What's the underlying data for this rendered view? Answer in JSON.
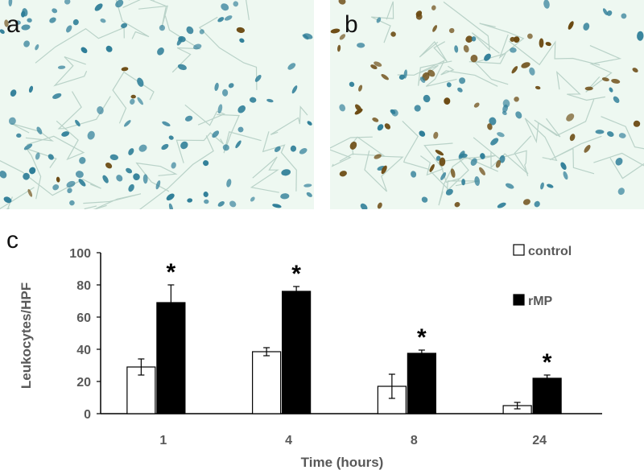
{
  "panels": [
    {
      "letter": "a"
    },
    {
      "letter": "b"
    },
    {
      "letter": "c"
    }
  ],
  "colors": {
    "tissue_background": "#eef8f1",
    "nucleus_blue": "#2f7e98",
    "nucleus_brown": "#6b4a12",
    "membrane": "#b9d2c8",
    "control_fill": "#ffffff",
    "rmp_fill": "#000000",
    "axis_text": "#595959"
  },
  "chart_data": {
    "type": "bar",
    "categories": [
      "1",
      "4",
      "8",
      "24"
    ],
    "series": [
      {
        "name": "control",
        "values": [
          29,
          38.5,
          17,
          5
        ],
        "errors": [
          5,
          2.5,
          7.5,
          2
        ]
      },
      {
        "name": "rMP",
        "values": [
          69,
          76,
          37.5,
          22
        ],
        "errors": [
          11,
          3,
          2,
          2
        ]
      }
    ],
    "significance_marker": "*",
    "significant": [
      true,
      true,
      true,
      true
    ],
    "xlabel": "Time (hours)",
    "ylabel": "Leukocytes/HPF",
    "ylim": [
      0,
      100
    ],
    "yticks": [
      0,
      20,
      40,
      60,
      80,
      100
    ],
    "grid": false,
    "legend_position": "top-right"
  }
}
